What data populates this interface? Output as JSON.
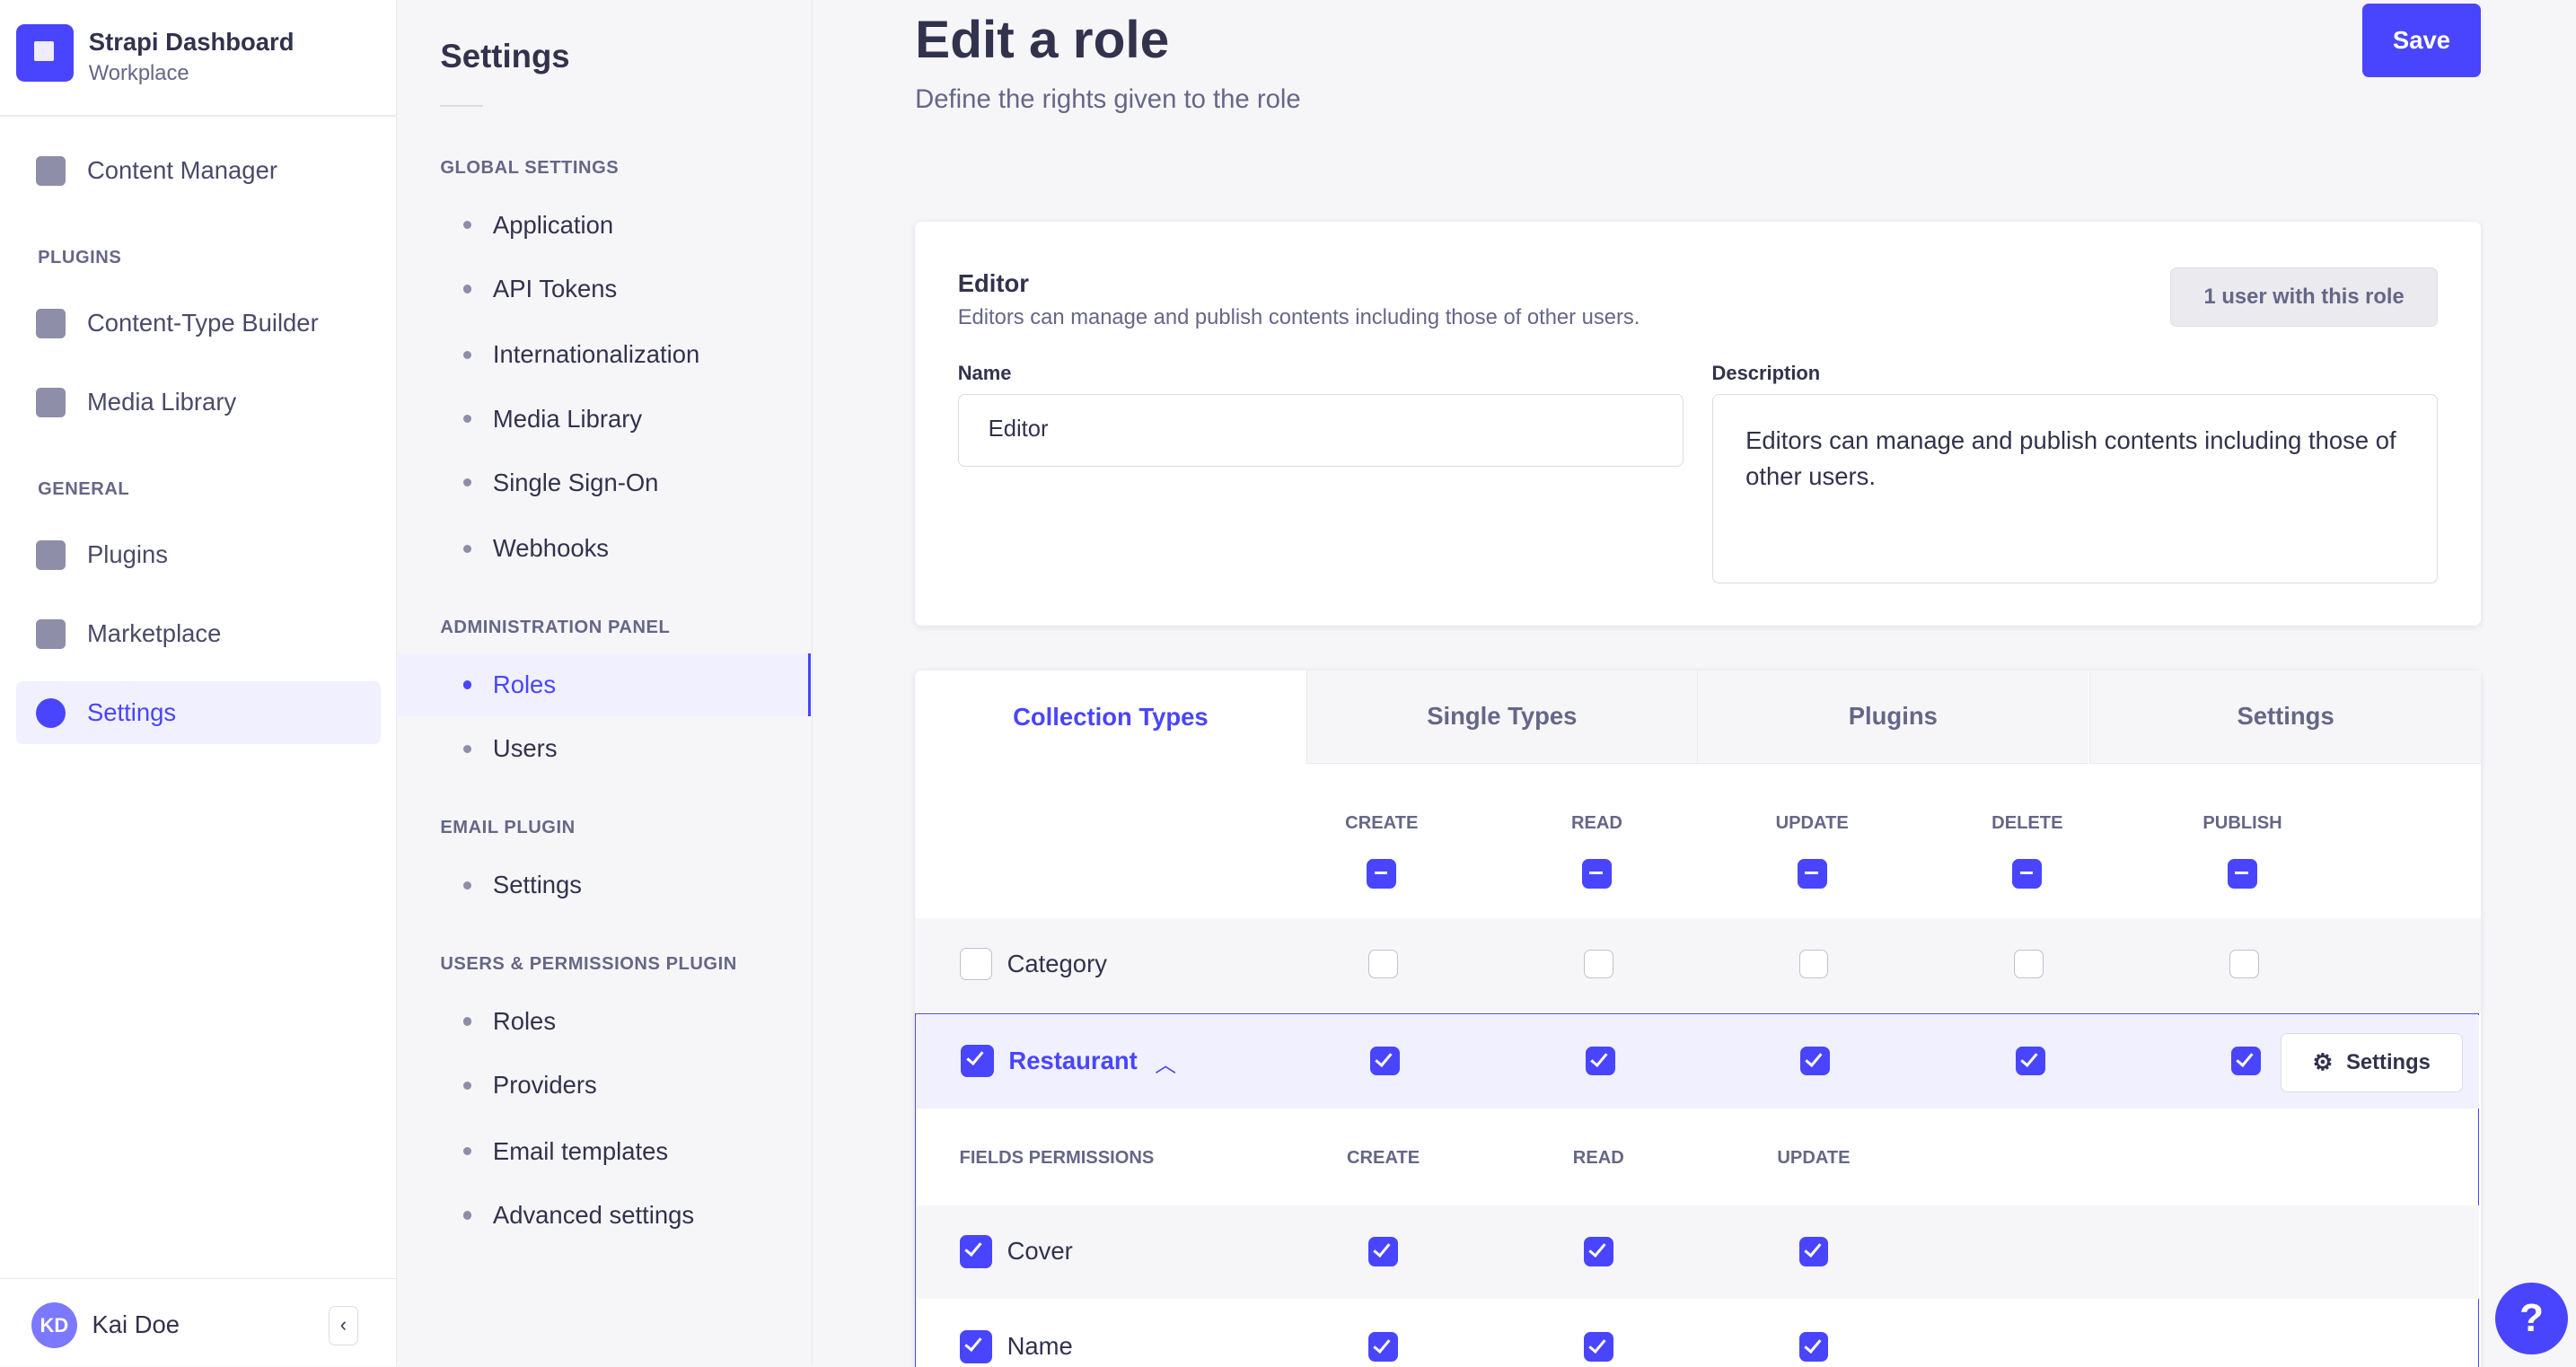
{
  "app": {
    "title": "Strapi Dashboard",
    "subtitle": "Workplace"
  },
  "sidebar": {
    "content_manager": "Content Manager",
    "plugins_heading": "PLUGINS",
    "ctb": "Content-Type Builder",
    "media": "Media Library",
    "general_heading": "GENERAL",
    "plugins": "Plugins",
    "marketplace": "Marketplace",
    "settings": "Settings",
    "user_initials": "KD",
    "user_name": "Kai Doe"
  },
  "subnav": {
    "title": "Settings",
    "global": "GLOBAL SETTINGS",
    "global_items": [
      "Application",
      "API Tokens",
      "Internationalization",
      "Media Library",
      "Single Sign-On",
      "Webhooks"
    ],
    "admin": "ADMINISTRATION PANEL",
    "admin_items": [
      "Roles",
      "Users"
    ],
    "email": "EMAIL PLUGIN",
    "email_items": [
      "Settings"
    ],
    "up": "USERS & PERMISSIONS PLUGIN",
    "up_items": [
      "Roles",
      "Providers",
      "Email templates",
      "Advanced settings"
    ]
  },
  "header": {
    "title": "Edit a role",
    "subtitle": "Define the rights given to the role",
    "save": "Save"
  },
  "role": {
    "name": "Editor",
    "description_text": "Editors can manage and publish contents including those of other users.",
    "users_badge": "1 user with this role",
    "name_label": "Name",
    "name_value": "Editor",
    "desc_label": "Description",
    "desc_value": "Editors can manage and publish contents including those of other users."
  },
  "tabs": [
    "Collection Types",
    "Single Types",
    "Plugins",
    "Settings"
  ],
  "permissions": {
    "columns": [
      "CREATE",
      "READ",
      "UPDATE",
      "DELETE",
      "PUBLISH"
    ],
    "rows": [
      {
        "name": "Category",
        "checked": false
      },
      {
        "name": "Restaurant",
        "checked": true,
        "expanded": true
      }
    ],
    "settings_button": "Settings",
    "fields_heading": "FIELDS PERMISSIONS",
    "field_columns": [
      "CREATE",
      "READ",
      "UPDATE"
    ],
    "fields": [
      {
        "name": "Cover",
        "checked": true
      },
      {
        "name": "Name",
        "checked": true
      }
    ]
  },
  "colors": {
    "primary": "#4945ff"
  }
}
